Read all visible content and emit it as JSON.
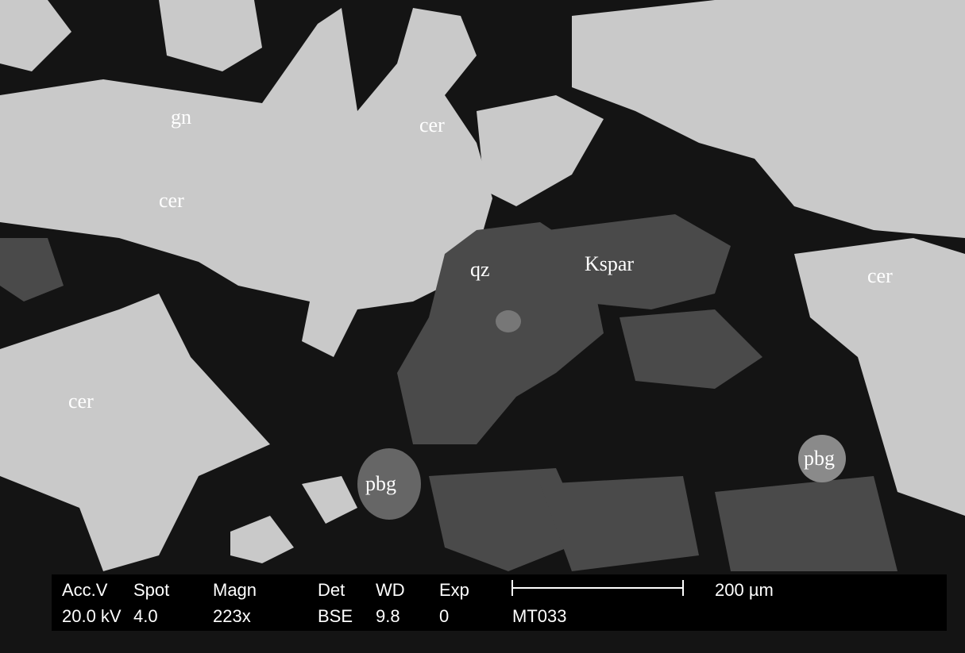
{
  "labels": [
    "gn",
    "cer",
    "cer",
    "qz",
    "Kspar",
    "cer",
    "cer",
    "pbg",
    "pbg"
  ],
  "info_bar": {
    "headers": [
      "Acc.V",
      "Spot",
      "Magn",
      "Det",
      "WD",
      "Exp"
    ],
    "values": [
      "20.0 kV",
      "4.0",
      "223x",
      "BSE",
      "9.8",
      "0"
    ],
    "sample_id": "MT033",
    "scale_bar_label": "200 µm"
  }
}
